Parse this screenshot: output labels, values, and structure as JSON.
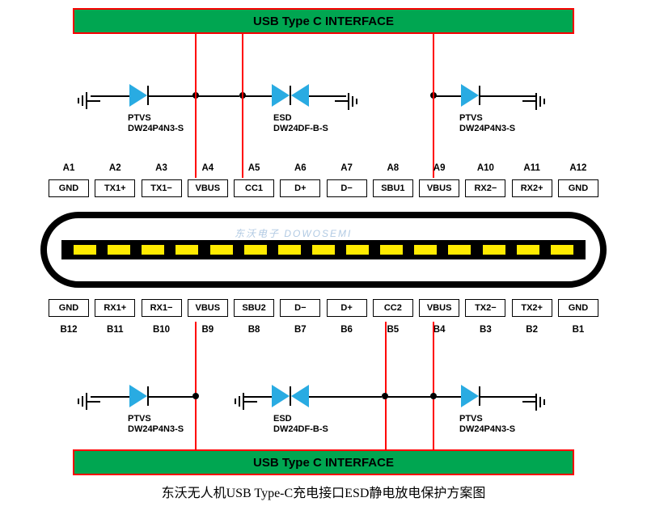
{
  "interface": {
    "title": "USB Type C INTERFACE"
  },
  "pinsA": {
    "nums": [
      "A1",
      "A2",
      "A3",
      "A4",
      "A5",
      "A6",
      "A7",
      "A8",
      "A9",
      "A10",
      "A11",
      "A12"
    ],
    "labels": [
      "GND",
      "TX1+",
      "TX1−",
      "VBUS",
      "CC1",
      "D+",
      "D−",
      "SBU1",
      "VBUS",
      "RX2−",
      "RX2+",
      "GND"
    ]
  },
  "pinsB": {
    "nums": [
      "B12",
      "B11",
      "B10",
      "B9",
      "B8",
      "B7",
      "B6",
      "B5",
      "B4",
      "B3",
      "B2",
      "B1"
    ],
    "labels": [
      "GND",
      "RX1+",
      "RX1−",
      "VBUS",
      "SBU2",
      "D−",
      "D+",
      "CC2",
      "VBUS",
      "TX2−",
      "TX2+",
      "GND"
    ]
  },
  "components": {
    "ptvs": {
      "type": "PTVS",
      "part": "DW24P4N3-S"
    },
    "esd": {
      "type": "ESD",
      "part": "DW24DF-B-S"
    }
  },
  "padCount": 15,
  "colors": {
    "green": "#00a651",
    "red": "#ff0000",
    "blue": "#29abe2",
    "yellow": "#ffeb00",
    "black": "#000"
  },
  "watermark": "东沃电子 DOWOSEMI",
  "caption": "东沃无人机USB Type-C充电接口ESD静电放电保护方案图"
}
